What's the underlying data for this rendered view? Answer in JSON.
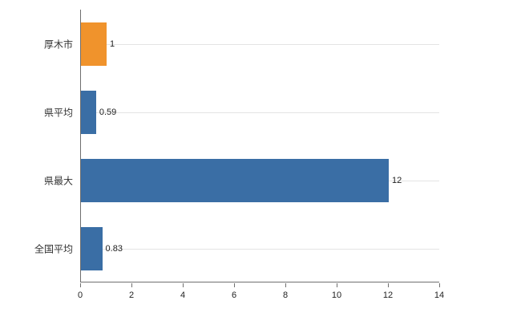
{
  "colors": {
    "background": "#ffffff",
    "axis": "#6f6f6f",
    "gridline": "#e4e4e4",
    "highlight_bar": "#f0932c",
    "default_bar": "#3a6ea5",
    "text": "#333333"
  },
  "chart_data": {
    "type": "bar",
    "orientation": "horizontal",
    "title": "",
    "xlabel": "",
    "ylabel": "",
    "categories": [
      "厚木市",
      "県平均",
      "県最大",
      "全国平均"
    ],
    "values": [
      1,
      0.59,
      12,
      0.83
    ],
    "value_labels": [
      "1",
      "0.59",
      "12",
      "0.83"
    ],
    "bar_colors": [
      "#f0932c",
      "#3a6ea5",
      "#3a6ea5",
      "#3a6ea5"
    ],
    "xlim": [
      0,
      14
    ],
    "x_ticks": [
      0,
      2,
      4,
      6,
      8,
      10,
      12,
      14
    ],
    "x_tick_labels": [
      "0",
      "2",
      "4",
      "6",
      "8",
      "10",
      "12",
      "14"
    ],
    "grid": "horizontal-category-lines",
    "legend": "none"
  }
}
